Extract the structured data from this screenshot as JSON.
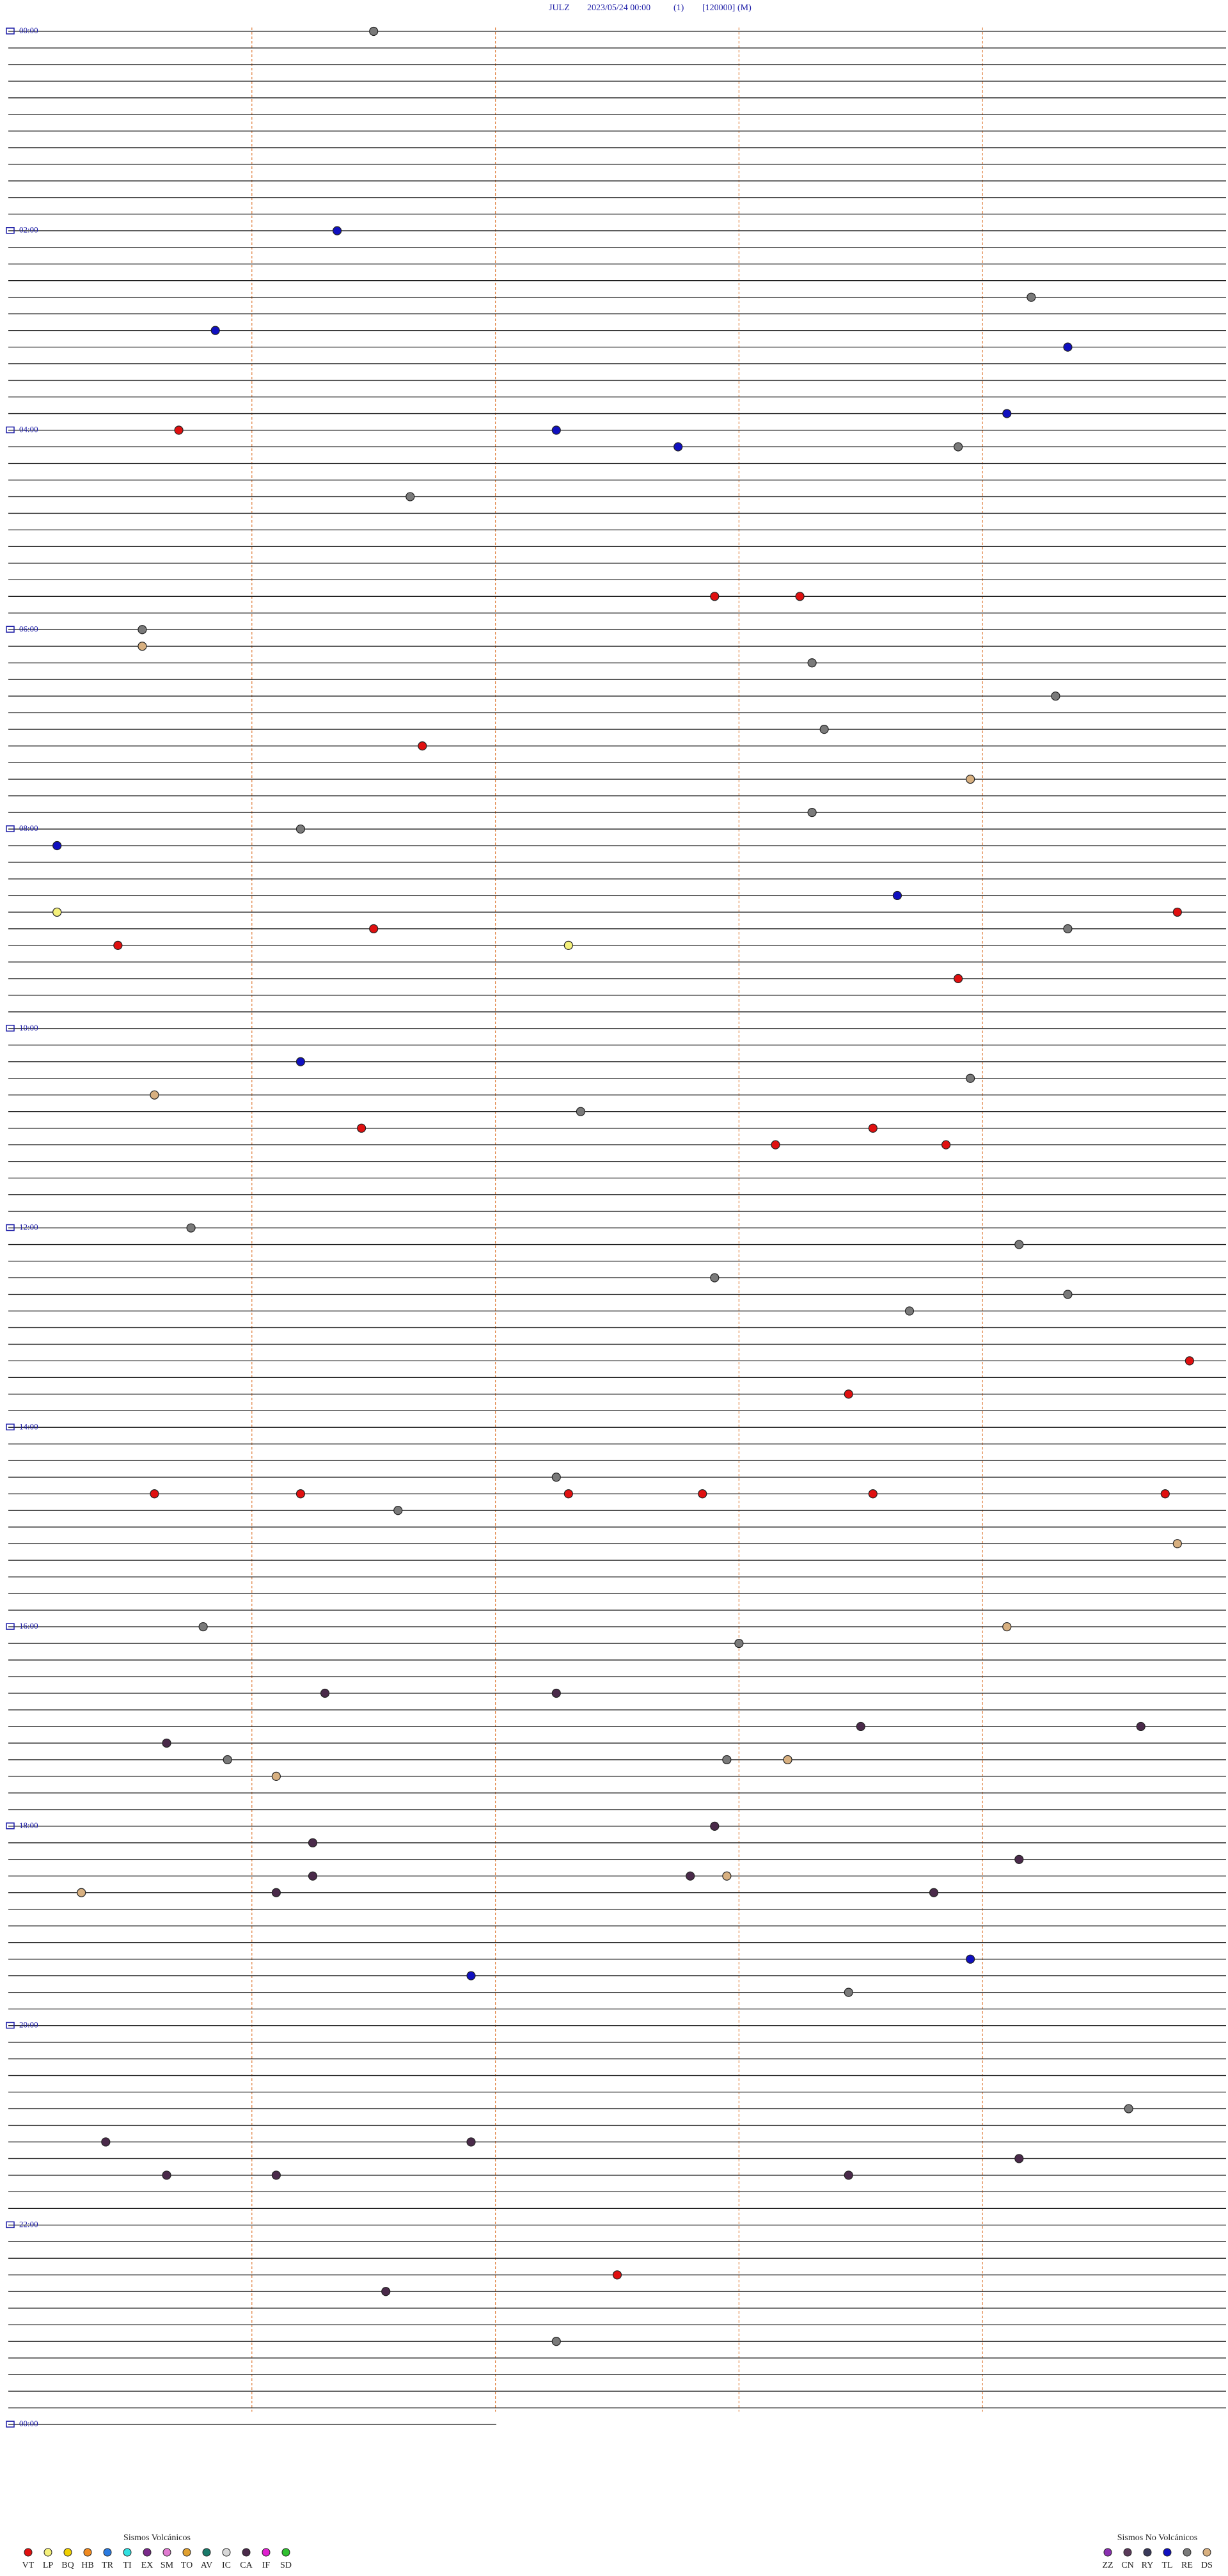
{
  "header": {
    "station": "JULZ",
    "datetime": "2023/05/24 00:00",
    "channel": "(1)",
    "scale": "[120000]",
    "mode": "(M)"
  },
  "hour_labels": [
    "00:00",
    "02:00",
    "04:00",
    "06:00",
    "08:00",
    "10:00",
    "12:00",
    "14:00",
    "16:00",
    "18:00",
    "20:00",
    "22:00",
    "00:00"
  ],
  "events": [
    {
      "type": "RE",
      "minute": 3.0
    },
    {
      "type": "TL",
      "minute": 122.7
    },
    {
      "type": "RE",
      "minute": 168.4
    },
    {
      "type": "TL",
      "minute": 181.7
    },
    {
      "type": "TL",
      "minute": 198.7
    },
    {
      "type": "TL",
      "minute": 238.2
    },
    {
      "type": "VT",
      "minute": 241.4
    },
    {
      "type": "TL",
      "minute": 244.5
    },
    {
      "type": "TL",
      "minute": 255.5
    },
    {
      "type": "RE",
      "minute": 257.8
    },
    {
      "type": "RE",
      "minute": 283.3
    },
    {
      "type": "VT",
      "minute": 345.8
    },
    {
      "type": "VT",
      "minute": 346.5
    },
    {
      "type": "RE",
      "minute": 361.1
    },
    {
      "type": "DS",
      "minute": 371.1
    },
    {
      "type": "RE",
      "minute": 386.6
    },
    {
      "type": "RE",
      "minute": 408.6
    },
    {
      "type": "RE",
      "minute": 426.7
    },
    {
      "type": "VT",
      "minute": 433.4
    },
    {
      "type": "DS",
      "minute": 457.9
    },
    {
      "type": "RE",
      "minute": 476.6
    },
    {
      "type": "RE",
      "minute": 482.4
    },
    {
      "type": "TL",
      "minute": 490.4
    },
    {
      "type": "TL",
      "minute": 527.3
    },
    {
      "type": "LP",
      "minute": 530.4
    },
    {
      "type": "VT",
      "minute": 539.6
    },
    {
      "type": "VT",
      "minute": 543.0
    },
    {
      "type": "RE",
      "minute": 548.7
    },
    {
      "type": "VT",
      "minute": 550.9
    },
    {
      "type": "LP",
      "minute": 554.6
    },
    {
      "type": "VT",
      "minute": 577.8
    },
    {
      "type": "TL",
      "minute": 622.4
    },
    {
      "type": "RE",
      "minute": 637.9
    },
    {
      "type": "DS",
      "minute": 641.2
    },
    {
      "type": "RE",
      "minute": 654.7
    },
    {
      "type": "VT",
      "minute": 662.9
    },
    {
      "type": "VT",
      "minute": 667.1
    },
    {
      "type": "VT",
      "minute": 676.3
    },
    {
      "type": "VT",
      "minute": 677.7
    },
    {
      "type": "RE",
      "minute": 721.5
    },
    {
      "type": "RE",
      "minute": 738.3
    },
    {
      "type": "RE",
      "minute": 755.8
    },
    {
      "type": "RE",
      "minute": 768.7
    },
    {
      "type": "RE",
      "minute": 777.4
    },
    {
      "type": "VT",
      "minute": 809.7
    },
    {
      "type": "VT",
      "minute": 826.9
    },
    {
      "type": "RE",
      "minute": 874.5
    },
    {
      "type": "VT",
      "minute": 881.2
    },
    {
      "type": "VT",
      "minute": 882.4
    },
    {
      "type": "VT",
      "minute": 884.6
    },
    {
      "type": "VT",
      "minute": 885.7
    },
    {
      "type": "VT",
      "minute": 887.1
    },
    {
      "type": "VT",
      "minute": 889.5
    },
    {
      "type": "RE",
      "minute": 893.2
    },
    {
      "type": "DS",
      "minute": 919.6
    },
    {
      "type": "RE",
      "minute": 961.6
    },
    {
      "type": "DS",
      "minute": 968.2
    },
    {
      "type": "RE",
      "minute": 976.0
    },
    {
      "type": "CA",
      "minute": 1002.6
    },
    {
      "type": "CA",
      "minute": 1004.5
    },
    {
      "type": "CA",
      "minute": 1027.0
    },
    {
      "type": "CA",
      "minute": 1029.3
    },
    {
      "type": "CA",
      "minute": 1031.3
    },
    {
      "type": "RE",
      "minute": 1041.8
    },
    {
      "type": "RE",
      "minute": 1045.9
    },
    {
      "type": "DS",
      "minute": 1046.4
    },
    {
      "type": "DS",
      "minute": 1052.2
    },
    {
      "type": "CA",
      "minute": 1085.8
    },
    {
      "type": "CA",
      "minute": 1092.5
    },
    {
      "type": "CA",
      "minute": 1108.3
    },
    {
      "type": "CA",
      "minute": 1112.5
    },
    {
      "type": "CA",
      "minute": 1115.6
    },
    {
      "type": "DS",
      "minute": 1115.9
    },
    {
      "type": "DS",
      "minute": 1120.6
    },
    {
      "type": "CA",
      "minute": 1122.2
    },
    {
      "type": "CA",
      "minute": 1127.6
    },
    {
      "type": "TL",
      "minute": 1167.9
    },
    {
      "type": "TL",
      "minute": 1173.8
    },
    {
      "type": "RE",
      "minute": 1186.9
    },
    {
      "type": "RE",
      "minute": 1259.2
    },
    {
      "type": "CA",
      "minute": 1270.8
    },
    {
      "type": "CA",
      "minute": 1273.8
    },
    {
      "type": "CA",
      "minute": 1288.3
    },
    {
      "type": "CA",
      "minute": 1291.3
    },
    {
      "type": "CA",
      "minute": 1292.2
    },
    {
      "type": "CA",
      "minute": 1296.9
    },
    {
      "type": "VT",
      "minute": 1355.0
    },
    {
      "type": "CA",
      "minute": 1363.1
    },
    {
      "type": "RE",
      "minute": 1394.5
    }
  ],
  "legend": {
    "volcanic": {
      "title": "Sismos Volcánicos",
      "items": [
        {
          "code": "VT",
          "color": "#e01010"
        },
        {
          "code": "LP",
          "color": "#f4f07a"
        },
        {
          "code": "BQ",
          "color": "#f0d000"
        },
        {
          "code": "HB",
          "color": "#f08a20"
        },
        {
          "code": "TR",
          "color": "#2a7ae0"
        },
        {
          "code": "TI",
          "color": "#30e0e0"
        },
        {
          "code": "EX",
          "color": "#7a2a8a"
        },
        {
          "code": "SM",
          "color": "#e07ad0"
        },
        {
          "code": "TO",
          "color": "#e0a030"
        },
        {
          "code": "AV",
          "color": "#1a7a6a"
        },
        {
          "code": "IC",
          "color": "#d8d8d8"
        },
        {
          "code": "CA",
          "color": "#4a2a4a"
        },
        {
          "code": "IF",
          "color": "#e020d0"
        },
        {
          "code": "SD",
          "color": "#30c030"
        }
      ]
    },
    "non_volcanic": {
      "title": "Sismos No Volcánicos",
      "items": [
        {
          "code": "ZZ",
          "color": "#8a30b0"
        },
        {
          "code": "CN",
          "color": "#5a3a5a"
        },
        {
          "code": "RY",
          "color": "#3a3a5a"
        },
        {
          "code": "TL",
          "color": "#1010c0"
        },
        {
          "code": "RE",
          "color": "#7a7a7a"
        },
        {
          "code": "DS",
          "color": "#d8b080"
        }
      ]
    }
  }
}
